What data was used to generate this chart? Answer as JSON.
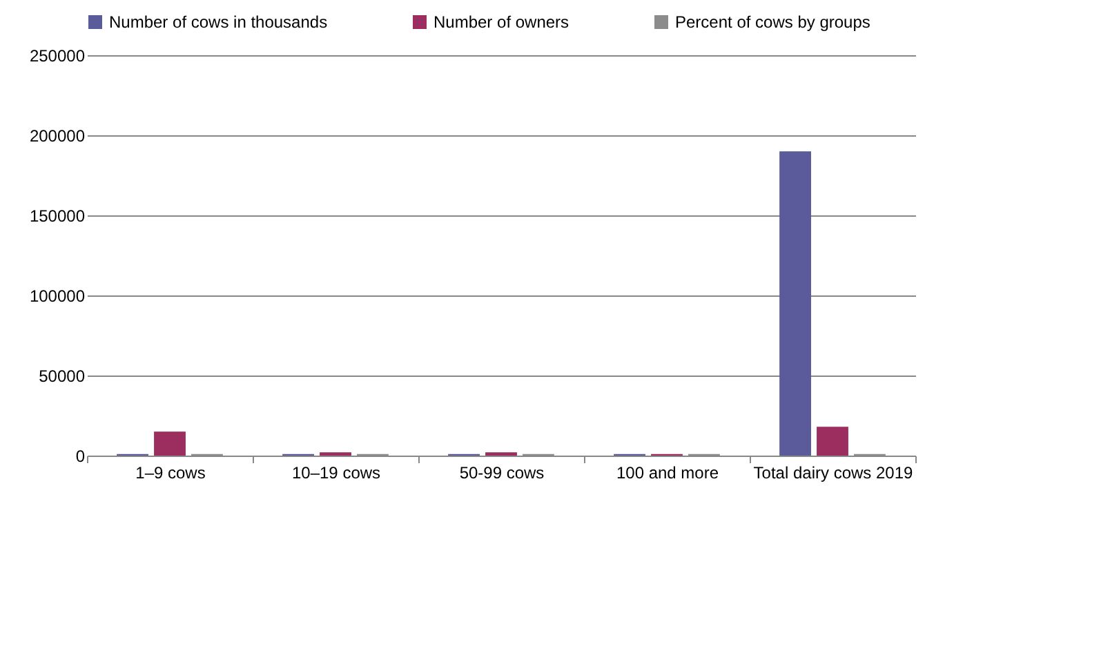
{
  "chart_data": {
    "type": "bar",
    "categories": [
      "1–9 cows",
      "10–19 cows",
      "50-99 cows",
      "100 and more",
      "Total dairy cows 2019"
    ],
    "series": [
      {
        "name": "Number of cows in thousands",
        "color": "#5b5b9b",
        "values": [
          1000,
          1000,
          1000,
          1000,
          190000
        ]
      },
      {
        "name": "Number of owners",
        "color": "#9b2d5f",
        "values": [
          15000,
          2000,
          2000,
          1000,
          18000
        ]
      },
      {
        "name": "Percent of cows by groups",
        "color": "#8c8c8c",
        "values": [
          1000,
          1000,
          1000,
          1000,
          1000
        ]
      }
    ],
    "ylim": [
      0,
      250000
    ],
    "yticks": [
      0,
      50000,
      100000,
      150000,
      200000,
      250000
    ],
    "grid": "y",
    "legend": "top"
  }
}
